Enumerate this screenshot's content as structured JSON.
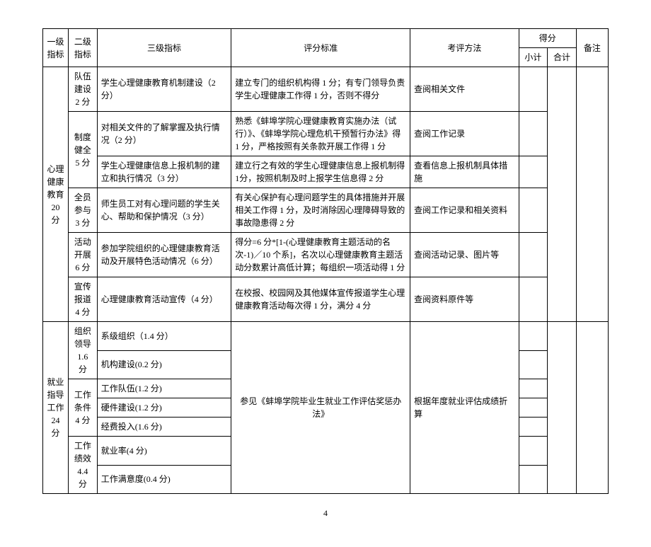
{
  "header": {
    "l1": "一级指标",
    "l2": "二级指标",
    "l3": "三级指标",
    "crit": "评分标准",
    "meth": "考评方法",
    "score": "得分",
    "sub": "小计",
    "tot": "合计",
    "note": "备注"
  },
  "sec1": {
    "l1": "心理健康教育20 分",
    "g1_l2": "队伍建设2 分",
    "g1_l3": "学生心理健康教育机制建设（2分）",
    "g1_crit": "建立专门的组织机构得 1 分；有专门领导负责学生心理健康工作得 1 分，否则不得分",
    "g1_meth": "查阅相关文件",
    "g2_l2": "制度健全5 分",
    "g2a_l3": "对相关文件的了解掌握及执行情况（2 分）",
    "g2a_crit": "熟悉《蚌埠学院心理健康教育实施办法（试行）》、《蚌埠学院心理危机干预暂行办法》得 1 分，严格按照有关条款开展工作得 1 分",
    "g2a_meth": "查阅工作记录",
    "g2b_l3": "学生心理健康信息上报机制的建立和执行情况（3 分）",
    "g2b_crit": "建立行之有效的学生心理健康信息上报机制得 1分，按照机制及时上报学生信息得 2 分",
    "g2b_meth": "查看信息上报机制具体措施",
    "g3_l2": "全员参与3 分",
    "g3_l3": "师生员工对有心理问题的学生关心、帮助和保护情况（3 分）",
    "g3_crit": "有关心保护有心理问题学生的具体措施并开展相关工作得 1 分，及时消除因心理障碍导致的事故隐患得 2 分",
    "g3_meth": "查阅工作记录和相关资料",
    "g4_l2": "活动开展6 分",
    "g4_l3": "参加学院组织的心理健康教育活动及开展特色活动情况（6 分）",
    "g4_crit": "得分=6 分*[1-(心理健康教育主题活动的名次-1)／10 个系]，名次以心理健康教育主题活动分数累计高低计算；每组织一项活动得 1 分",
    "g4_meth": "查阅活动记录、图片等",
    "g5_l2": "宣传报道4 分",
    "g5_l3": "心理健康教育活动宣传（4 分）",
    "g5_crit": "在校报、校园网及其他媒体宣传报道学生心理健康教育活动每次得 1 分，满分 4 分",
    "g5_meth": "查阅资料原件等"
  },
  "sec2": {
    "l1": "就业指导工作24 分",
    "g1_l2": "组织领导1.6 分",
    "g1a_l3": "系级组织（1.4 分）",
    "g1b_l3": "机构建设(0.2 分)",
    "g2_l2": "工作条件4 分",
    "g2a_l3": "工作队伍(1.2 分)",
    "g2b_l3": "硬件建设(1.2 分)",
    "g2c_l3": "经费投入(1.6 分)",
    "g3_l2": "工作绩效4.4 分",
    "g3a_l3": "就业率(4 分)",
    "g3b_l3": "工作满意度(0.4 分)",
    "crit": "参见《蚌埠学院毕业生就业工作评估奖惩办法》",
    "meth": "根据年度就业评估成绩折算"
  },
  "pagenum": "4"
}
